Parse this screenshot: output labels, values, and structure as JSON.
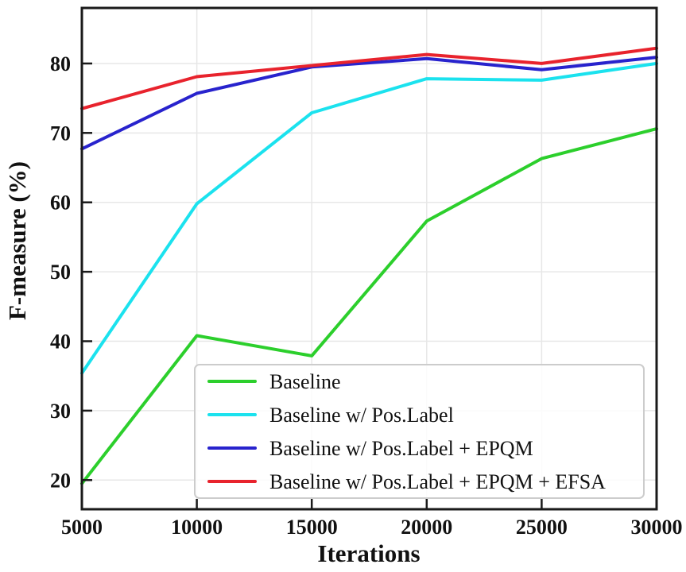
{
  "chart_data": {
    "type": "line",
    "title": "",
    "xlabel": "Iterations",
    "ylabel": "F-measure (%)",
    "x": [
      5000,
      10000,
      15000,
      20000,
      25000,
      30000
    ],
    "series": [
      {
        "name": "Baseline",
        "color": "#2CCF2C",
        "values": [
          19.5,
          40.8,
          37.9,
          57.3,
          66.3,
          70.6
        ]
      },
      {
        "name": "Baseline w/ Pos.Label",
        "color": "#1BE2EE",
        "values": [
          35.4,
          59.8,
          72.9,
          77.8,
          77.6,
          80.0
        ]
      },
      {
        "name": "Baseline w/ Pos.Label + EPQM",
        "color": "#2823CD",
        "values": [
          67.7,
          75.7,
          79.5,
          80.7,
          79.1,
          80.9
        ]
      },
      {
        "name": "Baseline w/ Pos.Label + EPQM + EFSA",
        "color": "#E8232D",
        "values": [
          73.5,
          78.1,
          79.7,
          81.3,
          80.0,
          82.2
        ]
      }
    ],
    "xticks": [
      5000,
      10000,
      15000,
      20000,
      25000,
      30000
    ],
    "yticks": [
      20,
      30,
      40,
      50,
      60,
      70,
      80
    ],
    "xlim": [
      5000,
      30000
    ],
    "ylim": [
      15.8,
      88.0
    ],
    "grid": true,
    "legend_position": "lower right",
    "grid_color": "#e7e7e7",
    "axis_color": "#1a1a1a",
    "legend_border_color": "#cccccc"
  }
}
